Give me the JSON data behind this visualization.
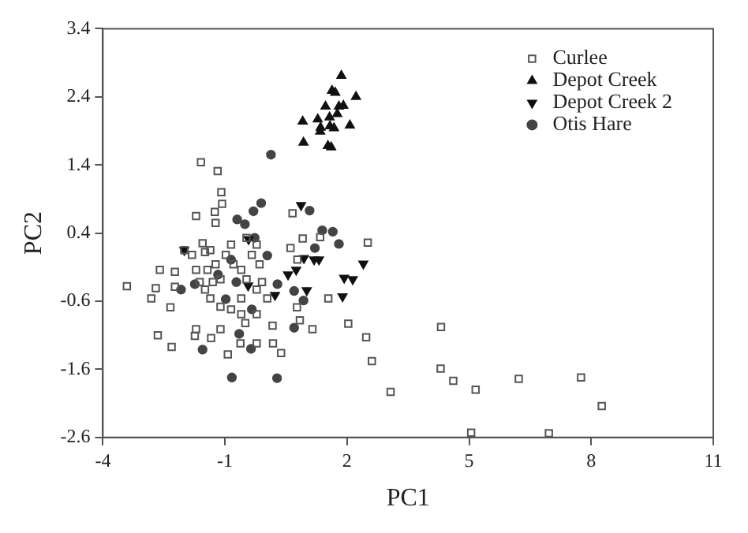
{
  "chart_data": {
    "type": "scatter",
    "xlabel": "PC1",
    "ylabel": "PC2",
    "xlim": [
      -4,
      11
    ],
    "ylim": [
      -2.6,
      3.4
    ],
    "xticks": [
      -4,
      -1,
      2,
      5,
      8,
      11
    ],
    "yticks": [
      -2.6,
      -1.6,
      -0.6,
      0.4,
      1.4,
      2.4,
      3.4
    ],
    "legend": "top right",
    "series": [
      {
        "name": "Curlee",
        "color": "#555555",
        "marker": "square",
        "x": [
          -3.41,
          -2.81,
          -2.7,
          -2.6,
          -2.34,
          -2.23,
          -2.23,
          -2.65,
          -2.31,
          -1.74,
          -1.71,
          -1.34,
          -1.11,
          -0.93,
          -0.62,
          -0.22,
          0.18,
          0.38,
          -0.5,
          0.17,
          1.15,
          -1.59,
          -1.18,
          -1.09,
          -1.07,
          -1.71,
          -1.25,
          -1.23,
          0.66,
          0.91,
          1.34,
          2.51,
          0.61,
          0.78,
          0.77,
          0.84,
          1.54,
          2.03,
          2.47,
          2.61,
          3.07,
          4.31,
          4.3,
          4.61,
          5.16,
          6.22,
          7.75,
          8.26,
          5.05,
          6.96,
          -2.0,
          -1.81,
          -1.55,
          -1.49,
          -1.36,
          -1.71,
          -1.43,
          -1.23,
          -1.11,
          -0.98,
          -0.85,
          -0.79,
          -0.6,
          -0.47,
          -0.34,
          -0.22,
          -0.15,
          -0.47,
          -0.6,
          -0.22,
          -0.09,
          0.04,
          -1.11,
          -0.85,
          -1.36,
          -0.6,
          -0.22,
          -1.62,
          -1.3,
          -1.49
        ],
        "values": [
          -0.38,
          -0.56,
          -0.41,
          -0.14,
          -0.69,
          -0.17,
          -0.39,
          -1.1,
          -1.27,
          -1.11,
          -1.01,
          -1.14,
          -1.01,
          -1.38,
          -1.22,
          -1.22,
          -1.22,
          -1.36,
          -0.92,
          -0.96,
          -1.01,
          1.44,
          1.31,
          1.0,
          0.83,
          0.65,
          0.71,
          0.55,
          0.69,
          0.32,
          0.34,
          0.26,
          0.18,
          0.01,
          -0.69,
          -0.88,
          -0.56,
          -0.93,
          -1.13,
          -1.48,
          -1.93,
          -0.98,
          -1.59,
          -1.77,
          -1.9,
          -1.74,
          -1.72,
          -2.14,
          -2.53,
          -2.54,
          0.15,
          0.08,
          0.25,
          0.12,
          0.15,
          -0.14,
          -0.14,
          -0.06,
          -0.28,
          0.08,
          0.23,
          -0.06,
          -0.14,
          0.33,
          0.08,
          0.23,
          -0.06,
          -0.28,
          -0.56,
          -0.43,
          -0.32,
          -0.56,
          -0.68,
          -0.72,
          -0.56,
          -0.79,
          -0.79,
          -0.32,
          -0.32,
          -0.43
        ]
      },
      {
        "name": "Depot Creek",
        "color": "#111111",
        "marker": "triangle",
        "x": [
          1.86,
          2.22,
          1.63,
          1.71,
          0.91,
          0.93,
          1.28,
          1.47,
          1.57,
          1.8,
          1.91,
          2.07,
          1.35,
          1.58,
          1.68,
          1.53,
          1.61,
          1.34,
          1.76
        ],
        "values": [
          2.71,
          2.4,
          2.49,
          2.46,
          2.04,
          1.73,
          2.07,
          2.26,
          2.1,
          2.26,
          2.27,
          1.98,
          1.95,
          1.97,
          1.94,
          1.68,
          1.66,
          1.89,
          2.15
        ]
      },
      {
        "name": "Depot Creek 2",
        "color": "#111111",
        "marker": "triangle-down",
        "x": [
          0.87,
          0.94,
          1.19,
          1.31,
          0.55,
          0.75,
          1.01,
          1.93,
          2.14,
          2.4,
          1.89,
          0.23,
          -0.43,
          -0.42,
          -2.0
        ],
        "values": [
          0.81,
          0.03,
          0.01,
          0.01,
          -0.21,
          -0.14,
          -0.44,
          -0.26,
          -0.28,
          -0.05,
          -0.53,
          -0.51,
          -0.37,
          0.31,
          0.15
        ]
      },
      {
        "name": "Otis Hare",
        "color": "#444444",
        "marker": "circle",
        "x": [
          0.13,
          -0.11,
          -0.3,
          -0.7,
          -0.51,
          -0.27,
          0.04,
          1.39,
          1.65,
          1.8,
          1.08,
          1.21,
          0.7,
          0.93,
          0.7,
          -0.36,
          -1.55,
          -0.83,
          0.28,
          -2.08,
          -1.74,
          -0.98,
          -0.72,
          -0.65,
          -0.34,
          -1.17,
          -0.85,
          0.29
        ],
        "values": [
          1.55,
          0.84,
          0.72,
          0.6,
          0.53,
          0.33,
          0.07,
          0.44,
          0.42,
          0.24,
          0.73,
          0.18,
          -0.45,
          -0.59,
          -0.99,
          -1.3,
          -1.31,
          -1.72,
          -1.73,
          -0.43,
          -0.35,
          -0.57,
          -0.32,
          -1.08,
          -0.72,
          -0.21,
          0.01,
          -0.35
        ]
      }
    ]
  }
}
